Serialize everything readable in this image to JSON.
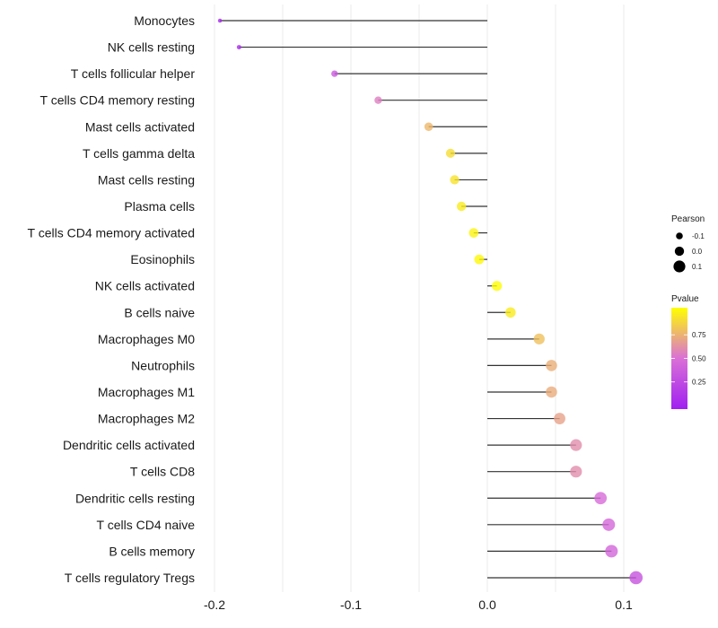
{
  "chart_data": {
    "type": "lollipop",
    "title": "",
    "xlabel": "",
    "ylabel": "",
    "xlim": [
      -0.205,
      0.115
    ],
    "xticks": [
      -0.2,
      -0.1,
      0.0,
      0.1
    ],
    "xtick_labels": [
      "-0.2",
      "-0.1",
      "0.0",
      "0.1"
    ],
    "grid": true,
    "categories": [
      "Monocytes",
      "NK cells resting",
      "T cells follicular helper",
      "T cells CD4 memory resting",
      "Mast cells activated",
      "T cells gamma delta",
      "Mast cells resting",
      "Plasma cells",
      "T cells CD4 memory activated",
      "Eosinophils",
      "NK cells activated",
      "B cells naive",
      "Macrophages M0",
      "Neutrophils",
      "Macrophages M1",
      "Macrophages M2",
      "Dendritic cells activated",
      "T cells CD8",
      "Dendritic cells resting",
      "T cells CD4 naive",
      "B cells memory",
      "T cells regulatory  Tregs"
    ],
    "pearson": [
      -0.196,
      -0.182,
      -0.112,
      -0.08,
      -0.043,
      -0.027,
      -0.024,
      -0.019,
      -0.01,
      -0.006,
      0.007,
      0.017,
      0.038,
      0.047,
      0.047,
      0.053,
      0.065,
      0.065,
      0.083,
      0.089,
      0.091,
      0.109
    ],
    "pvalue": [
      0.05,
      0.08,
      0.35,
      0.55,
      0.75,
      0.88,
      0.9,
      0.93,
      0.96,
      0.98,
      0.99,
      0.93,
      0.78,
      0.72,
      0.71,
      0.68,
      0.6,
      0.6,
      0.47,
      0.44,
      0.43,
      0.32
    ],
    "legend": {
      "size": {
        "title": "Pearson",
        "breaks": [
          -0.1,
          0.0,
          0.1
        ],
        "labels": [
          "-0.1",
          "0.0",
          "0.1"
        ]
      },
      "color": {
        "title": "Pvalue",
        "breaks": [
          0.25,
          0.5,
          0.75
        ],
        "labels": [
          "0.25",
          "0.50",
          "0.75"
        ],
        "range": [
          0.0,
          1.0
        ],
        "low_color": "#A020F0",
        "mid_color": "#DA70D6",
        "high_color": "#FFFF00"
      },
      "position": "right"
    }
  }
}
